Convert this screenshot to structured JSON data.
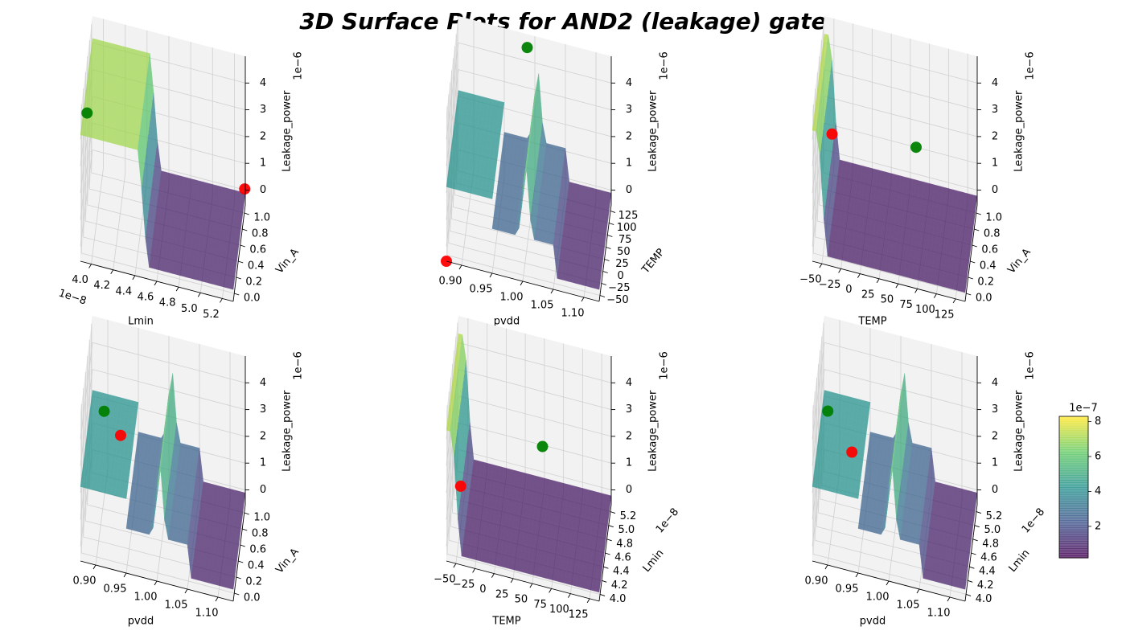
{
  "figure": {
    "title": "3D Surface Plots for AND2 (leakage) gate"
  },
  "colors": {
    "pane": "#f2f2f2",
    "pane_side": "#e9e9e9",
    "grid": "#d0d0d0",
    "axis": "#000000",
    "marker_max": "#008000",
    "marker_min": "#ff0000",
    "viridis": [
      "#440154",
      "#3b528b",
      "#21918c",
      "#5ec962",
      "#fde725"
    ]
  },
  "chart_data": [
    {
      "type": "surface",
      "x": {
        "label": "Lmin",
        "ticks": [
          "4.0",
          "4.2",
          "4.4",
          "4.6",
          "4.8",
          "5.0",
          "5.2"
        ],
        "offset": "1e−8",
        "range": [
          3.9e-08,
          5.3e-08
        ]
      },
      "y": {
        "label": "Vin_A",
        "ticks": [
          "0.0",
          "0.2",
          "0.4",
          "0.6",
          "0.8",
          "1.0"
        ],
        "range": [
          0,
          1
        ]
      },
      "z": {
        "label": "Leakage_power",
        "ticks": [
          "0",
          "1",
          "2",
          "3",
          "4"
        ],
        "offset": "1e−6",
        "range": [
          0,
          4.6e-06
        ]
      },
      "surface": {
        "shape": "lmin-step",
        "high": 0.85,
        "low": 0.08
      },
      "markers": [
        {
          "kind": "max",
          "u": 0.0,
          "v": 0.55,
          "z": 3.2
        },
        {
          "kind": "min",
          "u": 1.0,
          "v": 0.95,
          "z": 0.7
        }
      ]
    },
    {
      "type": "surface",
      "x": {
        "label": "pvdd",
        "ticks": [
          "0.90",
          "0.95",
          "1.00",
          "1.05",
          "1.10"
        ],
        "range": [
          0.89,
          1.11
        ]
      },
      "y": {
        "label": "TEMP",
        "ticks": [
          "−50",
          "−25",
          "0",
          "25",
          "50",
          "75",
          "100",
          "125"
        ],
        "range": [
          -55,
          130
        ]
      },
      "z": {
        "label": "Leakage_power",
        "ticks": [
          "0",
          "1",
          "2",
          "3",
          "4"
        ],
        "offset": "1e−6",
        "range": [
          0,
          4.6e-06
        ]
      },
      "surface": {
        "shape": "pvdd-ridge",
        "high": 0.5,
        "mid": 0.3,
        "low": 0.08,
        "peak": 0.82
      },
      "markers": [
        {
          "kind": "max",
          "u": 0.45,
          "v": 1.0,
          "z": 4.55
        },
        {
          "kind": "min",
          "u": 0.0,
          "v": 0.0,
          "z": 0.0
        }
      ]
    },
    {
      "type": "surface",
      "x": {
        "label": "TEMP",
        "ticks": [
          "−50",
          "−25",
          "0",
          "25",
          "50",
          "75",
          "100",
          "125"
        ],
        "range": [
          -55,
          130
        ]
      },
      "y": {
        "label": "Vin_A",
        "ticks": [
          "0.0",
          "0.2",
          "0.4",
          "0.6",
          "0.8",
          "1.0"
        ],
        "range": [
          0,
          1
        ]
      },
      "z": {
        "label": "Leakage_power",
        "ticks": [
          "0",
          "1",
          "2",
          "3",
          "4"
        ],
        "offset": "1e−6",
        "range": [
          0,
          4.6e-06
        ]
      },
      "surface": {
        "shape": "temp-edge",
        "edge": 0.88,
        "low": 0.06
      },
      "markers": [
        {
          "kind": "max",
          "u": 0.6,
          "v": 1.0,
          "z": 1.4
        },
        {
          "kind": "min",
          "u": 0.05,
          "v": 1.0,
          "z": 1.1
        }
      ]
    },
    {
      "type": "surface",
      "x": {
        "label": "pvdd",
        "ticks": [
          "0.90",
          "0.95",
          "1.00",
          "1.05",
          "1.10"
        ],
        "range": [
          0.89,
          1.11
        ]
      },
      "y": {
        "label": "Vin_A",
        "ticks": [
          "0.0",
          "0.2",
          "0.4",
          "0.6",
          "0.8",
          "1.0"
        ],
        "range": [
          0,
          1
        ]
      },
      "z": {
        "label": "Leakage_power",
        "ticks": [
          "0",
          "1",
          "2",
          "3",
          "4"
        ],
        "offset": "1e−6",
        "range": [
          0,
          4.6e-06
        ]
      },
      "surface": {
        "shape": "pvdd-ridge",
        "high": 0.5,
        "mid": 0.3,
        "low": 0.08,
        "peak": 0.82
      },
      "markers": [
        {
          "kind": "max",
          "u": 0.1,
          "v": 0.7,
          "z": 2.9
        },
        {
          "kind": "min",
          "u": 0.2,
          "v": 0.8,
          "z": 1.9
        }
      ]
    },
    {
      "type": "surface",
      "x": {
        "label": "TEMP",
        "ticks": [
          "−50",
          "−25",
          "0",
          "25",
          "50",
          "75",
          "100",
          "125"
        ],
        "range": [
          -55,
          130
        ]
      },
      "y": {
        "label": "Lmin",
        "ticks": [
          "4.0",
          "4.2",
          "4.4",
          "4.6",
          "4.8",
          "5.0",
          "5.2"
        ],
        "offset": "1e−8",
        "range": [
          3.9e-08,
          5.3e-08
        ]
      },
      "z": {
        "label": "Leakage_power",
        "ticks": [
          "0",
          "1",
          "2",
          "3",
          "4"
        ],
        "offset": "1e−6",
        "range": [
          0,
          4.6e-06
        ]
      },
      "surface": {
        "shape": "temp-edge",
        "edge": 0.88,
        "low": 0.06
      },
      "markers": [
        {
          "kind": "max",
          "u": 0.55,
          "v": 1.0,
          "z": 1.35
        },
        {
          "kind": "min",
          "u": 0.05,
          "v": 0.55,
          "z": 0.8
        }
      ]
    },
    {
      "type": "surface",
      "x": {
        "label": "pvdd",
        "ticks": [
          "0.90",
          "0.95",
          "1.00",
          "1.05",
          "1.10"
        ],
        "range": [
          0.89,
          1.11
        ]
      },
      "y": {
        "label": "Lmin",
        "ticks": [
          "4.0",
          "4.2",
          "4.4",
          "4.6",
          "4.8",
          "5.0",
          "5.2"
        ],
        "offset": "1e−8",
        "range": [
          3.9e-08,
          5.3e-08
        ]
      },
      "z": {
        "label": "Leakage_power",
        "ticks": [
          "0",
          "1",
          "2",
          "3",
          "4"
        ],
        "offset": "1e−6",
        "range": [
          0,
          4.6e-06
        ]
      },
      "surface": {
        "shape": "pvdd-ridge",
        "high": 0.5,
        "mid": 0.3,
        "low": 0.08,
        "peak": 0.82
      },
      "markers": [
        {
          "kind": "max",
          "u": 0.05,
          "v": 0.65,
          "z": 3.0
        },
        {
          "kind": "min",
          "u": 0.2,
          "v": 0.75,
          "z": 1.5
        }
      ]
    }
  ],
  "colorbar": {
    "offset": "1e−7",
    "ticks": [
      "2",
      "4",
      "6",
      "8"
    ],
    "tick_values": [
      2,
      4,
      6,
      8
    ],
    "range": [
      0.2,
      8.3
    ]
  }
}
